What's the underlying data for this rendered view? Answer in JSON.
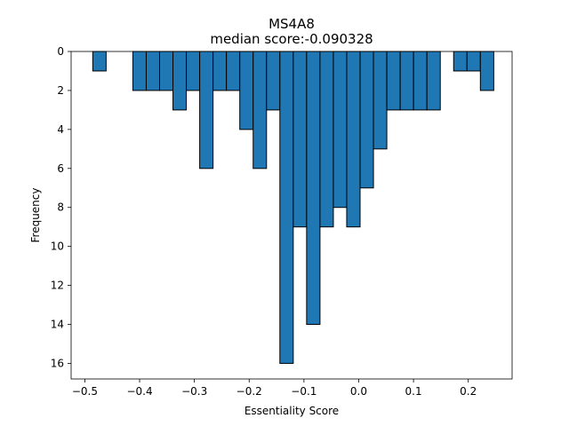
{
  "chart_data": {
    "type": "bar",
    "title": "MS4A8",
    "subtitle": "median score:-0.090328",
    "xlabel": "Essentiality Score",
    "ylabel": "Frequency",
    "xlim": [
      -0.525,
      0.28
    ],
    "ylim": [
      16.8,
      0
    ],
    "y_inverted": true,
    "x_ticks": [
      -0.5,
      -0.4,
      -0.3,
      -0.2,
      -0.1,
      0.0,
      0.1,
      0.2
    ],
    "x_tick_labels": [
      "−0.5",
      "−0.4",
      "−0.3",
      "−0.2",
      "−0.1",
      "0.0",
      "0.1",
      "0.2"
    ],
    "y_ticks": [
      0,
      2,
      4,
      6,
      8,
      10,
      12,
      14,
      16
    ],
    "y_tick_labels": [
      "0",
      "2",
      "4",
      "6",
      "8",
      "10",
      "12",
      "14",
      "16"
    ],
    "bin_width": 0.0244,
    "bin_left_edges": [
      -0.4855,
      -0.4123,
      -0.3879,
      -0.3635,
      -0.3391,
      -0.3147,
      -0.2903,
      -0.2659,
      -0.2415,
      -0.2171,
      -0.1927,
      -0.1683,
      -0.1439,
      -0.1195,
      -0.0951,
      -0.0707,
      -0.0463,
      -0.0219,
      0.0025,
      0.0269,
      0.0513,
      0.0757,
      0.1001,
      0.1245,
      0.1733,
      0.1977,
      0.2221
    ],
    "values": [
      1,
      2,
      2,
      2,
      3,
      2,
      6,
      2,
      2,
      4,
      6,
      3,
      16,
      9,
      14,
      9,
      8,
      9,
      7,
      5,
      3,
      3,
      3,
      3,
      1,
      1,
      2
    ],
    "color": "#1f77b4",
    "edge_color": "#000000",
    "grid": false
  }
}
